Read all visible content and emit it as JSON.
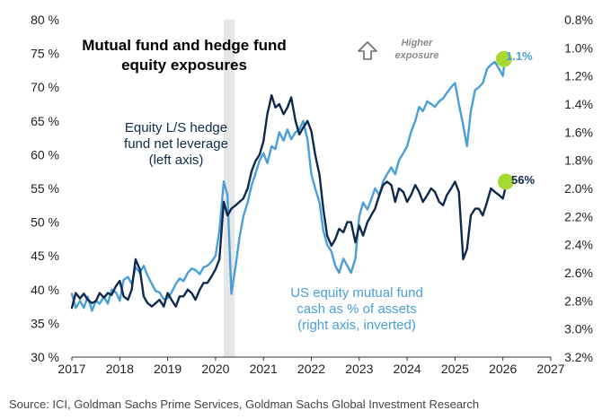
{
  "chart_data": {
    "type": "line",
    "title": "Mutual fund and hedge fund equity exposures",
    "title_lines": [
      "Mutual fund and hedge fund",
      "equity exposures"
    ],
    "x_ticks": [
      "2017",
      "2018",
      "2019",
      "2020",
      "2021",
      "2022",
      "2023",
      "2024",
      "2025",
      "2026",
      "2027"
    ],
    "xlim": [
      2017,
      2027
    ],
    "left_axis": {
      "ylim": [
        30,
        80
      ],
      "ticks": [
        "30 %",
        "35 %",
        "40 %",
        "45 %",
        "50 %",
        "55 %",
        "60 %",
        "65 %",
        "70 %",
        "75 %",
        "80 %"
      ],
      "tick_values": [
        30,
        35,
        40,
        45,
        50,
        55,
        60,
        65,
        70,
        75,
        80
      ]
    },
    "right_axis": {
      "inverted": true,
      "ylim": [
        3.2,
        0.8
      ],
      "ticks": [
        "0.8%",
        "1.0%",
        "1.2%",
        "1.4%",
        "1.6%",
        "1.8%",
        "2.0%",
        "2.2%",
        "2.4%",
        "2.6%",
        "2.8%",
        "3.0%",
        "3.2%"
      ],
      "tick_values": [
        0.8,
        1.0,
        1.2,
        1.4,
        1.6,
        1.8,
        2.0,
        2.2,
        2.4,
        2.6,
        2.8,
        3.0,
        3.2
      ]
    },
    "shaded_region": {
      "x_start": 2020.17,
      "x_end": 2020.4,
      "color": "#e6e6e6"
    },
    "series": [
      {
        "name": "Equity L/S hedge fund net leverage (left axis)",
        "axis": "left",
        "color": "#0d2a4d",
        "label_lines": [
          "Equity L/S hedge",
          "fund net leverage",
          "(left axis)"
        ],
        "end_label": "56%",
        "x": [
          2017.0,
          2017.08,
          2017.17,
          2017.25,
          2017.33,
          2017.42,
          2017.5,
          2017.58,
          2017.67,
          2017.75,
          2017.83,
          2017.92,
          2018.0,
          2018.08,
          2018.17,
          2018.25,
          2018.33,
          2018.42,
          2018.5,
          2018.58,
          2018.67,
          2018.75,
          2018.83,
          2018.92,
          2019.0,
          2019.08,
          2019.17,
          2019.25,
          2019.33,
          2019.42,
          2019.5,
          2019.58,
          2019.67,
          2019.75,
          2019.83,
          2019.92,
          2020.0,
          2020.08,
          2020.17,
          2020.25,
          2020.33,
          2020.42,
          2020.5,
          2020.58,
          2020.67,
          2020.75,
          2020.83,
          2020.92,
          2021.0,
          2021.08,
          2021.17,
          2021.25,
          2021.33,
          2021.42,
          2021.5,
          2021.58,
          2021.67,
          2021.75,
          2021.83,
          2021.92,
          2022.0,
          2022.08,
          2022.17,
          2022.25,
          2022.33,
          2022.42,
          2022.5,
          2022.58,
          2022.67,
          2022.75,
          2022.83,
          2022.92,
          2023.0,
          2023.08,
          2023.17,
          2023.25,
          2023.33,
          2023.42,
          2023.5,
          2023.58,
          2023.67,
          2023.75,
          2023.83,
          2023.92,
          2024.0,
          2024.08,
          2024.17,
          2024.25,
          2024.33,
          2024.42,
          2024.5,
          2024.58,
          2024.67,
          2024.75,
          2024.83,
          2024.92,
          2025.0,
          2025.08,
          2025.17,
          2025.25,
          2025.33,
          2025.42,
          2025.5,
          2025.58,
          2025.67,
          2025.75,
          2025.83,
          2025.92,
          2026.0,
          2026.08
        ],
        "values": [
          37.3,
          39.5,
          38.7,
          39.4,
          38.5,
          38.0,
          38.3,
          39.5,
          38.8,
          39.5,
          39.2,
          40.5,
          41.3,
          39.0,
          38.5,
          40.0,
          44.5,
          43.0,
          39.0,
          38.0,
          37.5,
          38.0,
          38.5,
          37.5,
          39.5,
          38.5,
          37.5,
          39.0,
          39.0,
          40.0,
          39.5,
          38.5,
          40.0,
          41.0,
          41.0,
          42.0,
          43.0,
          44.5,
          53.0,
          51.0,
          52.0,
          52.5,
          53.0,
          53.5,
          55.0,
          57.5,
          59.0,
          60.0,
          62.0,
          66.0,
          68.8,
          67.0,
          67.5,
          66.0,
          67.0,
          68.5,
          65.0,
          63.0,
          64.0,
          65.0,
          63.5,
          60.0,
          57.0,
          52.0,
          48.0,
          46.5,
          47.5,
          49.0,
          48.5,
          50.0,
          50.0,
          47.0,
          49.5,
          48.0,
          50.0,
          51.0,
          52.0,
          54.0,
          55.5,
          56.0,
          55.5,
          53.0,
          55.0,
          54.5,
          53.0,
          54.0,
          55.5,
          54.5,
          53.0,
          54.0,
          55.0,
          54.5,
          53.0,
          52.5,
          54.0,
          55.0,
          56.0,
          54.5,
          44.5,
          46.0,
          51.0,
          52.0,
          52.0,
          51.0,
          53.0,
          55.0,
          54.5,
          54.0,
          53.5,
          56.0
        ]
      },
      {
        "name": "US equity mutual fund cash as % of assets (right axis, inverted)",
        "axis": "right",
        "color": "#4a9fd8",
        "label_lines": [
          "US equity mutual fund",
          "cash as % of assets",
          "(right axis, inverted)"
        ],
        "end_label": "1.1%",
        "x": [
          2017.0,
          2017.08,
          2017.17,
          2017.25,
          2017.33,
          2017.42,
          2017.5,
          2017.58,
          2017.67,
          2017.75,
          2017.83,
          2017.92,
          2018.0,
          2018.08,
          2018.17,
          2018.25,
          2018.33,
          2018.42,
          2018.5,
          2018.58,
          2018.67,
          2018.75,
          2018.83,
          2018.92,
          2019.0,
          2019.08,
          2019.17,
          2019.25,
          2019.33,
          2019.42,
          2019.5,
          2019.58,
          2019.67,
          2019.75,
          2019.83,
          2019.92,
          2020.0,
          2020.08,
          2020.17,
          2020.25,
          2020.33,
          2020.42,
          2020.5,
          2020.58,
          2020.67,
          2020.75,
          2020.83,
          2020.92,
          2021.0,
          2021.08,
          2021.17,
          2021.25,
          2021.33,
          2021.42,
          2021.5,
          2021.58,
          2021.67,
          2021.75,
          2021.83,
          2021.92,
          2022.0,
          2022.08,
          2022.17,
          2022.25,
          2022.33,
          2022.42,
          2022.5,
          2022.58,
          2022.67,
          2022.75,
          2022.83,
          2022.92,
          2023.0,
          2023.08,
          2023.17,
          2023.25,
          2023.33,
          2023.42,
          2023.5,
          2023.58,
          2023.67,
          2023.75,
          2023.83,
          2023.92,
          2024.0,
          2024.08,
          2024.17,
          2024.25,
          2024.33,
          2024.42,
          2024.5,
          2024.58,
          2024.67,
          2024.75,
          2024.83,
          2024.92,
          2025.0,
          2025.08,
          2025.17,
          2025.25,
          2025.33,
          2025.42,
          2025.5,
          2025.58,
          2025.67,
          2025.75,
          2025.83,
          2025.92,
          2026.0,
          2026.04
        ],
        "values": [
          2.75,
          2.85,
          2.8,
          2.85,
          2.77,
          2.87,
          2.8,
          2.82,
          2.77,
          2.82,
          2.72,
          2.74,
          2.8,
          2.65,
          2.63,
          2.68,
          2.56,
          2.6,
          2.55,
          2.62,
          2.68,
          2.73,
          2.74,
          2.79,
          2.78,
          2.74,
          2.68,
          2.64,
          2.66,
          2.6,
          2.57,
          2.58,
          2.61,
          2.56,
          2.55,
          2.52,
          2.48,
          2.3,
          1.95,
          2.05,
          2.75,
          2.55,
          2.35,
          2.2,
          2.1,
          1.98,
          1.9,
          1.8,
          1.75,
          1.82,
          1.7,
          1.72,
          1.6,
          1.66,
          1.58,
          1.65,
          1.6,
          1.58,
          1.52,
          1.65,
          1.9,
          2.0,
          2.1,
          2.3,
          2.4,
          2.45,
          2.55,
          2.6,
          2.5,
          2.55,
          2.6,
          2.5,
          2.2,
          2.1,
          2.15,
          2.08,
          2.0,
          2.05,
          1.95,
          1.9,
          1.85,
          1.9,
          1.8,
          1.75,
          1.7,
          1.6,
          1.52,
          1.42,
          1.45,
          1.38,
          1.4,
          1.42,
          1.38,
          1.36,
          1.32,
          1.28,
          1.25,
          1.4,
          1.55,
          1.7,
          1.45,
          1.3,
          1.28,
          1.25,
          1.15,
          1.12,
          1.1,
          1.15,
          1.2,
          1.08
        ]
      }
    ],
    "annotations": {
      "higher_exposure": [
        "Higher",
        "exposure"
      ]
    },
    "source": "Source: ICI, Goldman Sachs Prime Services, Goldman Sachs Global Investment Research"
  },
  "colors": {
    "dark": "#0d2a4d",
    "light": "#4a9fd8",
    "marker": "#a8d833",
    "shade": "#e6e6e6"
  }
}
